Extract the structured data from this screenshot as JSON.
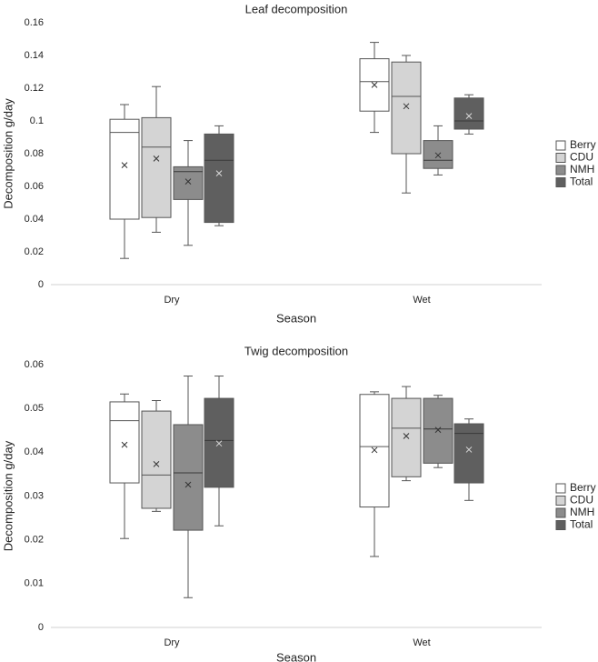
{
  "chart_data": [
    {
      "type": "boxplot",
      "title": "Leaf decomposition",
      "xlabel": "Season",
      "ylabel": "Decomposition g/day",
      "categories": [
        "Dry",
        "Wet"
      ],
      "ylim": [
        0,
        0.16
      ],
      "yticks": [
        0,
        0.02,
        0.04,
        0.06,
        0.08,
        0.1,
        0.12,
        0.14,
        0.16
      ],
      "ytick_labels": [
        "0",
        "0.02",
        "0.04",
        "0.06",
        "0.08",
        "0.1",
        "0.12",
        "0.14",
        "0.16"
      ],
      "grid": false,
      "legend_position": "right",
      "series": [
        {
          "name": "Berry",
          "color": "#ffffff",
          "boxes": [
            {
              "min": 0.016,
              "q1": 0.04,
              "median": 0.093,
              "q3": 0.101,
              "max": 0.11,
              "mean": 0.073
            },
            {
              "min": 0.093,
              "q1": 0.106,
              "median": 0.124,
              "q3": 0.138,
              "max": 0.148,
              "mean": 0.122
            }
          ]
        },
        {
          "name": "CDU",
          "color": "#d4d4d4",
          "boxes": [
            {
              "min": 0.032,
              "q1": 0.041,
              "median": 0.084,
              "q3": 0.102,
              "max": 0.121,
              "mean": 0.077
            },
            {
              "min": 0.056,
              "q1": 0.08,
              "median": 0.115,
              "q3": 0.136,
              "max": 0.14,
              "mean": 0.109
            }
          ]
        },
        {
          "name": "NMH",
          "color": "#8c8c8c",
          "boxes": [
            {
              "min": 0.024,
              "q1": 0.052,
              "median": 0.069,
              "q3": 0.072,
              "max": 0.088,
              "mean": 0.063
            },
            {
              "min": 0.067,
              "q1": 0.071,
              "median": 0.076,
              "q3": 0.088,
              "max": 0.097,
              "mean": 0.079
            }
          ]
        },
        {
          "name": "Total",
          "color": "#5f5f5f",
          "boxes": [
            {
              "min": 0.036,
              "q1": 0.038,
              "median": 0.076,
              "q3": 0.092,
              "max": 0.097,
              "mean": 0.068
            },
            {
              "min": 0.092,
              "q1": 0.095,
              "median": 0.1,
              "q3": 0.114,
              "max": 0.116,
              "mean": 0.103
            }
          ]
        }
      ]
    },
    {
      "type": "boxplot",
      "title": "Twig decomposition",
      "xlabel": "Season",
      "ylabel": "Decomposition g/day",
      "categories": [
        "Dry",
        "Wet"
      ],
      "ylim": [
        0,
        0.06
      ],
      "yticks": [
        0,
        0.01,
        0.02,
        0.03,
        0.04,
        0.05,
        0.06
      ],
      "ytick_labels": [
        "0",
        "0.01",
        "0.02",
        "0.03",
        "0.04",
        "0.05",
        "0.06"
      ],
      "grid": false,
      "legend_position": "right",
      "series": [
        {
          "name": "Berry",
          "color": "#ffffff",
          "boxes": [
            {
              "min": 0.0203,
              "q1": 0.033,
              "median": 0.0472,
              "q3": 0.0515,
              "max": 0.0533,
              "mean": 0.0417
            },
            {
              "min": 0.0162,
              "q1": 0.0275,
              "median": 0.0413,
              "q3": 0.0532,
              "max": 0.0538,
              "mean": 0.0405
            }
          ]
        },
        {
          "name": "CDU",
          "color": "#d4d4d4",
          "boxes": [
            {
              "min": 0.0265,
              "q1": 0.0272,
              "median": 0.0348,
              "q3": 0.0494,
              "max": 0.0518,
              "mean": 0.0373
            },
            {
              "min": 0.0335,
              "q1": 0.0344,
              "median": 0.0455,
              "q3": 0.0523,
              "max": 0.055,
              "mean": 0.0437
            }
          ]
        },
        {
          "name": "NMH",
          "color": "#8c8c8c",
          "boxes": [
            {
              "min": 0.0068,
              "q1": 0.0222,
              "median": 0.0353,
              "q3": 0.0463,
              "max": 0.0574,
              "mean": 0.0326
            },
            {
              "min": 0.0365,
              "q1": 0.0375,
              "median": 0.0453,
              "q3": 0.0523,
              "max": 0.053,
              "mean": 0.0451
            }
          ]
        },
        {
          "name": "Total",
          "color": "#5f5f5f",
          "boxes": [
            {
              "min": 0.0232,
              "q1": 0.032,
              "median": 0.0427,
              "q3": 0.0523,
              "max": 0.0574,
              "mean": 0.042
            },
            {
              "min": 0.029,
              "q1": 0.033,
              "median": 0.0443,
              "q3": 0.0465,
              "max": 0.0476,
              "mean": 0.0406
            }
          ]
        }
      ]
    }
  ]
}
